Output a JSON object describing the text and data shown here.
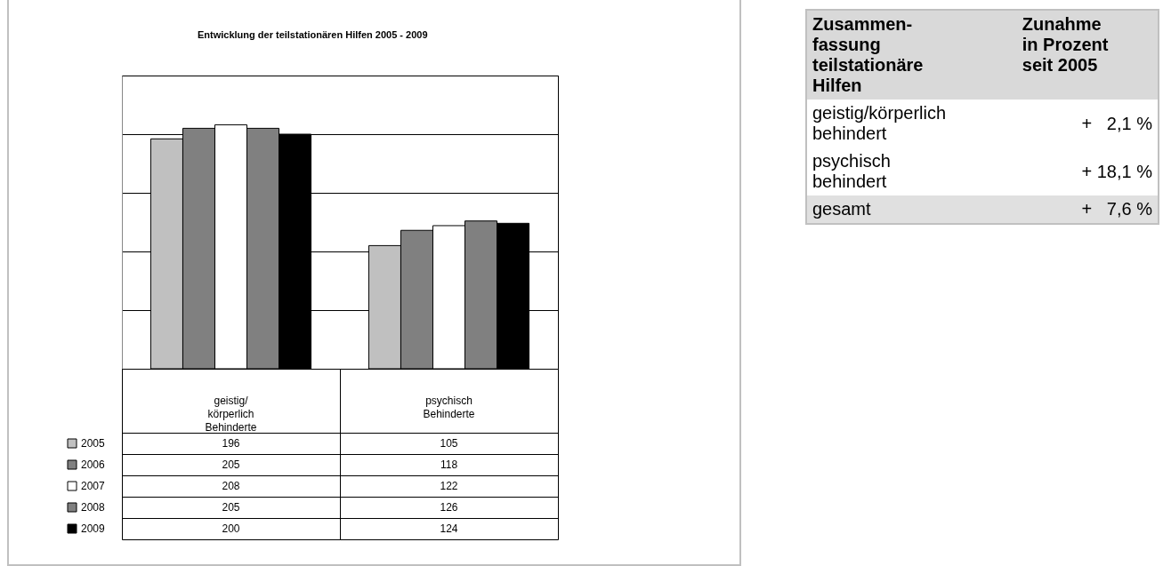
{
  "chart_data": [
    {
      "type": "bar",
      "title": "Entwicklung der teilstationären Hilfen 2005 - 2009",
      "categories": [
        "geistig/\nkörperlich\nBehinderte",
        "psychisch\nBehinderte"
      ],
      "series": [
        {
          "name": "2005",
          "color": "#c0c0c0",
          "values": [
            196,
            105
          ]
        },
        {
          "name": "2006",
          "color": "#808080",
          "values": [
            205,
            118
          ]
        },
        {
          "name": "2007",
          "color": "#ffffff",
          "values": [
            208,
            122
          ]
        },
        {
          "name": "2008",
          "color": "#808080",
          "values": [
            205,
            126
          ]
        },
        {
          "name": "2009",
          "color": "#000000",
          "values": [
            200,
            124
          ]
        }
      ],
      "ylim": [
        0,
        250
      ],
      "yticks": [
        {
          "value": 0,
          "label": null
        },
        {
          "value": 50,
          "label": null
        },
        {
          "value": 100,
          "label": null
        },
        {
          "value": 150,
          "label": null
        },
        {
          "value": 200,
          "label": null
        },
        {
          "value": 250,
          "label": null
        }
      ],
      "grid": "y",
      "tick_labels": false,
      "legend": "bottom left",
      "data_labels": true
    },
    {
      "type": "other",
      "annotations": [
        "Zusammen-\nfassung\nteilstationäre\nHilfen",
        "Zunahme\nin Prozent\nseit 2005",
        "geistig/körperlich\nbehindert",
        "+   2,1 %",
        "psychisch\nbehindert",
        "+ 18,1 %",
        "gesamt",
        "+   7,6 %"
      ]
    }
  ]
}
